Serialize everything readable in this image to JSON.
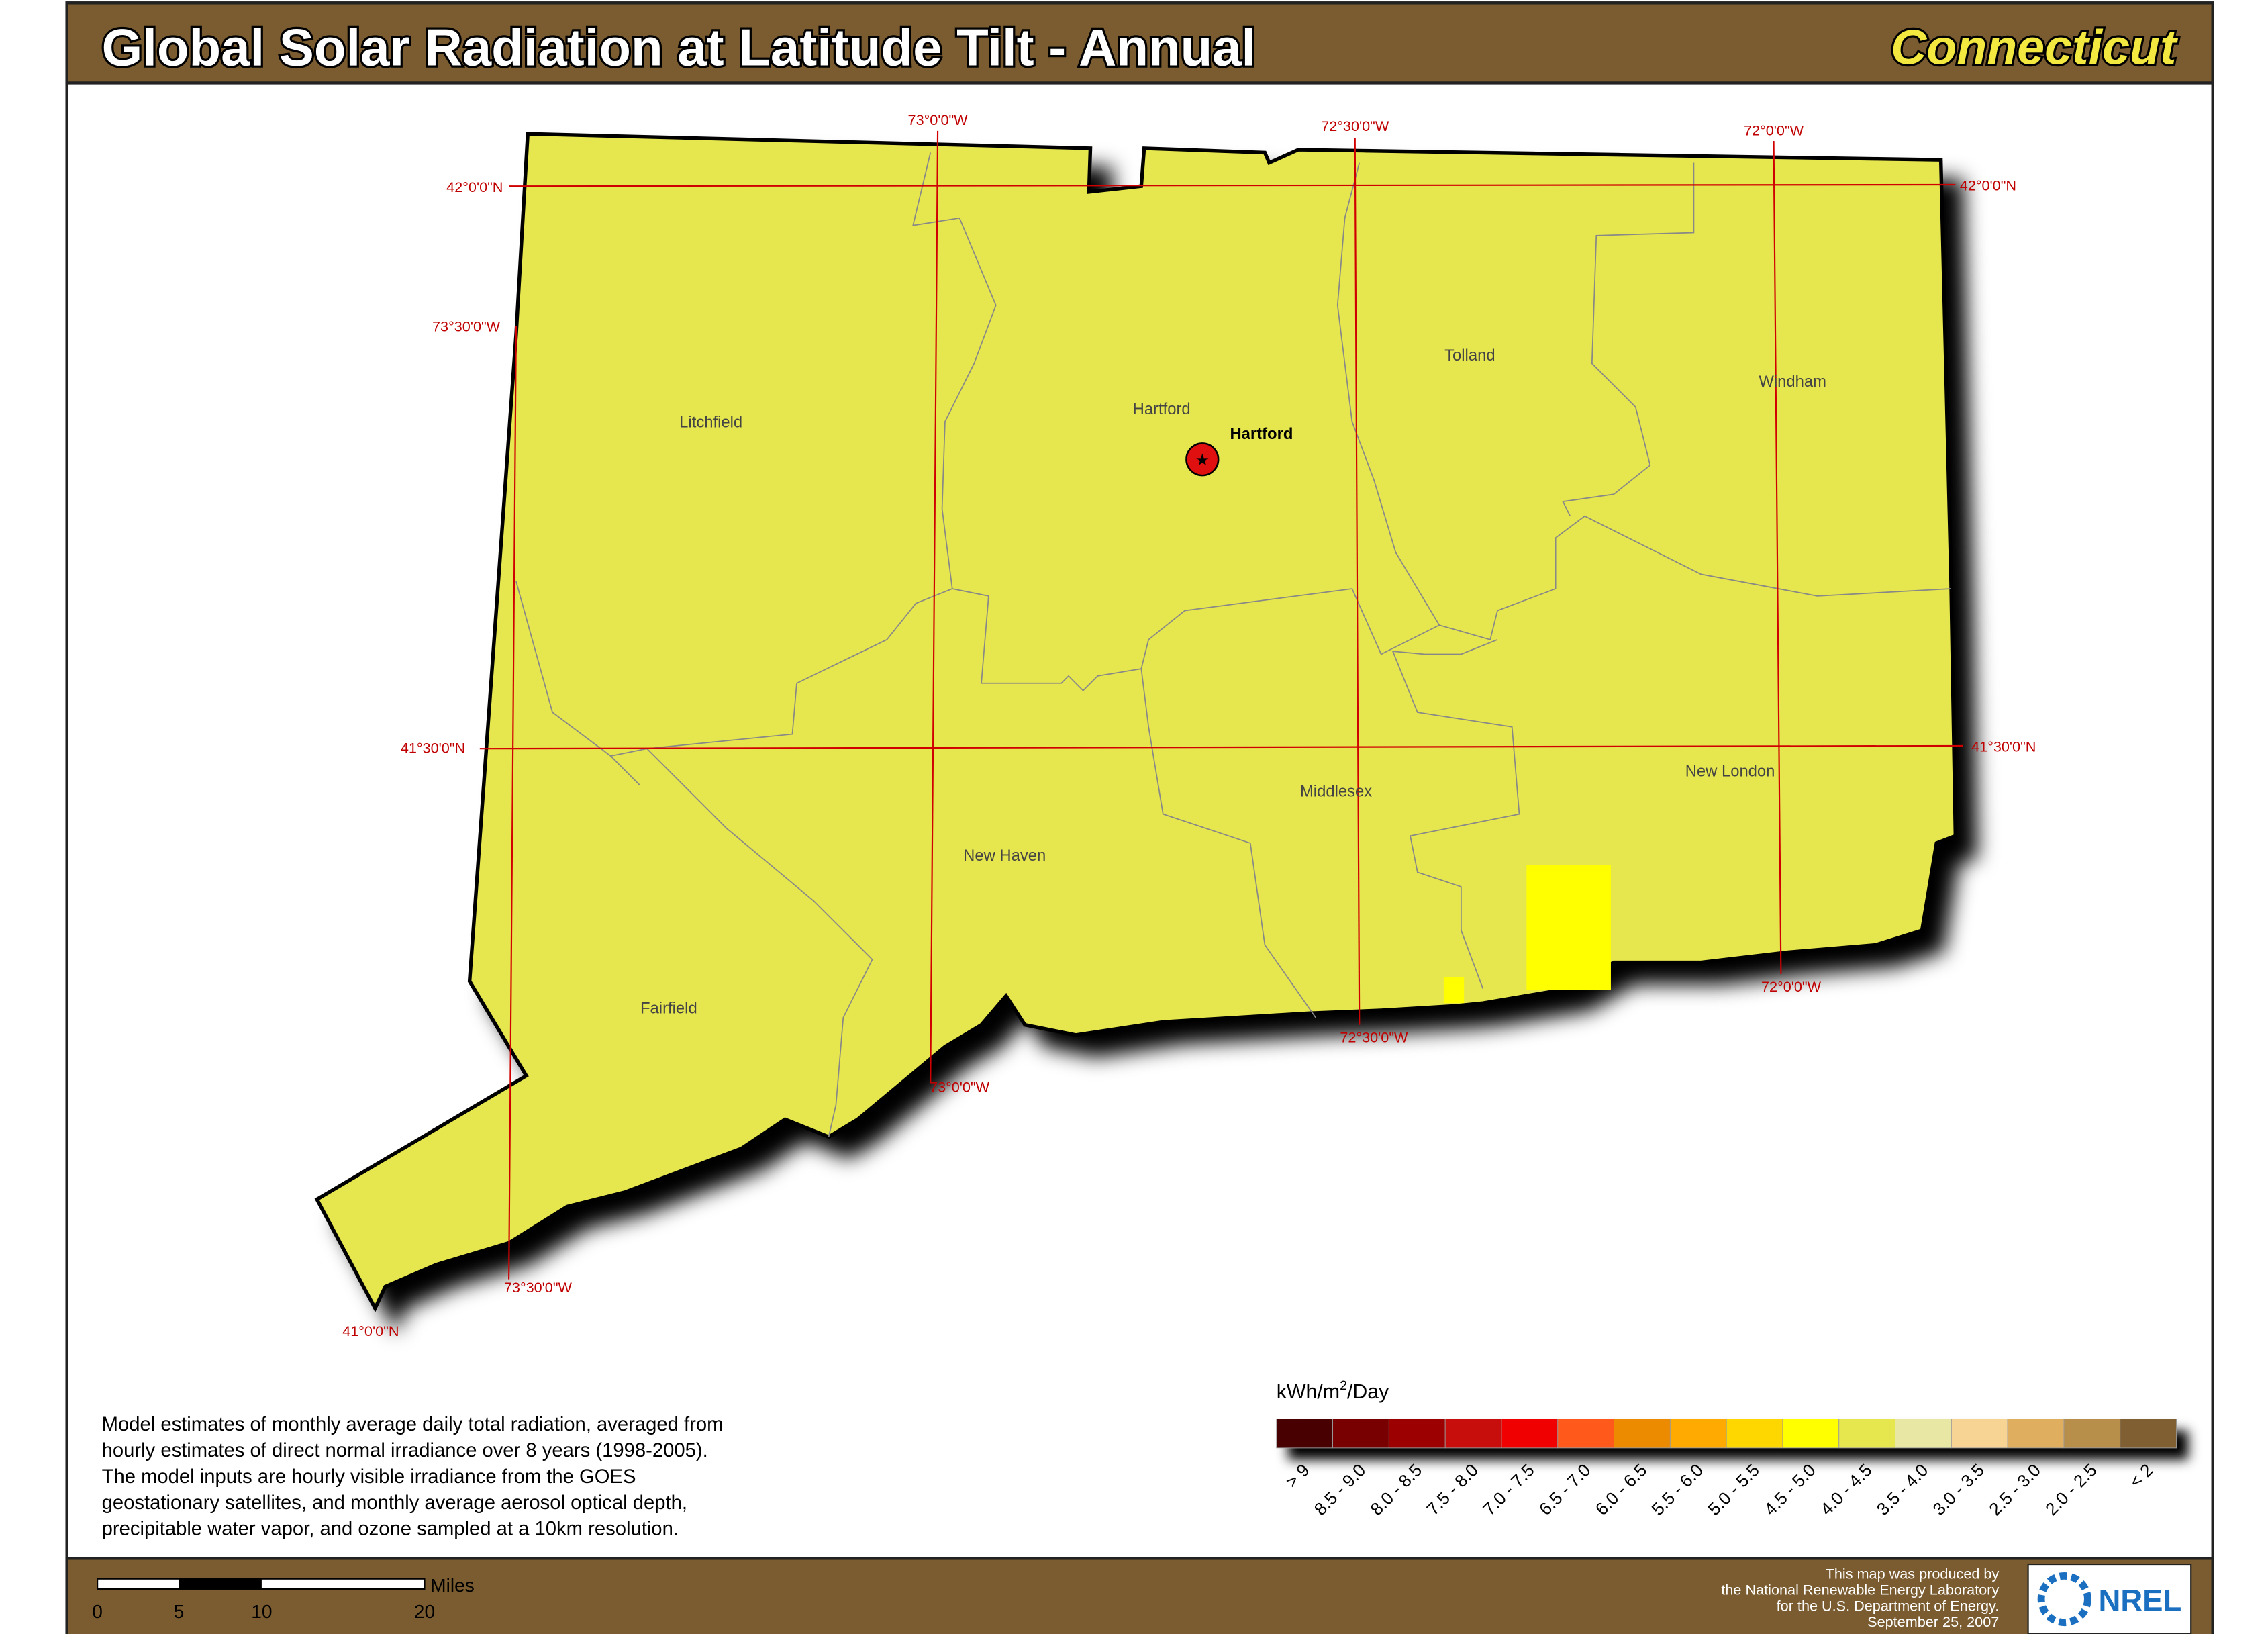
{
  "header": {
    "title": "Global Solar Radiation at Latitude Tilt - Annual",
    "state": "Connecticut"
  },
  "map": {
    "counties": [
      "Litchfield",
      "Hartford",
      "Tolland",
      "Windham",
      "Fairfield",
      "New Haven",
      "Middlesex",
      "New London"
    ],
    "city": "Hartford",
    "graticule": [
      "73°0'0\"W",
      "72°30'0\"W",
      "72°0'0\"W",
      "42°0'0\"N",
      "42°0'0\"N",
      "73°30'0\"W",
      "41°30'0\"N",
      "41°30'0\"N",
      "72°0'0\"W",
      "72°30'0\"W",
      "73°0'0\"W",
      "73°30'0\"W",
      "41°0'0\"N"
    ]
  },
  "legend": {
    "unit": {
      "prefix": "kWh/m",
      "sup": "2",
      "suffix": "/Day"
    },
    "items": [
      {
        "label": "> 9",
        "color": "#4a0404"
      },
      {
        "label": "8.5 - 9.0",
        "color": "#780404"
      },
      {
        "label": "8.0 - 8.5",
        "color": "#9c0606"
      },
      {
        "label": "7.5 - 8.0",
        "color": "#c80a0a"
      },
      {
        "label": "7.0 - 7.5",
        "color": "#f00000"
      },
      {
        "label": "6.5 - 7.0",
        "color": "#ff5a1e"
      },
      {
        "label": "6.0 - 6.5",
        "color": "#ec8a00"
      },
      {
        "label": "5.5 - 6.0",
        "color": "#ffaa00"
      },
      {
        "label": "5.0 - 5.5",
        "color": "#ffd700"
      },
      {
        "label": "4.5 - 5.0",
        "color": "#ffff00"
      },
      {
        "label": "4.0 - 4.5",
        "color": "#e6e650"
      },
      {
        "label": "3.5 - 4.0",
        "color": "#e8e8a4"
      },
      {
        "label": "3.0 - 3.5",
        "color": "#f7d394"
      },
      {
        "label": "2.5 - 3.0",
        "color": "#dfae5e"
      },
      {
        "label": "2.0 - 2.5",
        "color": "#b88e4c"
      },
      {
        "label": "< 2",
        "color": "#806030"
      }
    ]
  },
  "description": [
    "Model estimates of monthly average daily total radiation, averaged from",
    "hourly estimates of direct normal irradiance over 8 years (1998-2005).",
    "The model inputs are hourly visible irradiance from the GOES",
    "geostationary satellites, and monthly average aerosol optical depth,",
    "precipitable water vapor, and ozone sampled at a 10km resolution."
  ],
  "scale": {
    "unit": "Miles",
    "ticks": [
      "0",
      "5",
      "10",
      "20"
    ]
  },
  "credits": [
    "This map was produced by",
    "the National Renewable Energy Laboratory",
    "for the U.S. Department of Energy.",
    "September 25, 2007"
  ],
  "logo": "NREL"
}
